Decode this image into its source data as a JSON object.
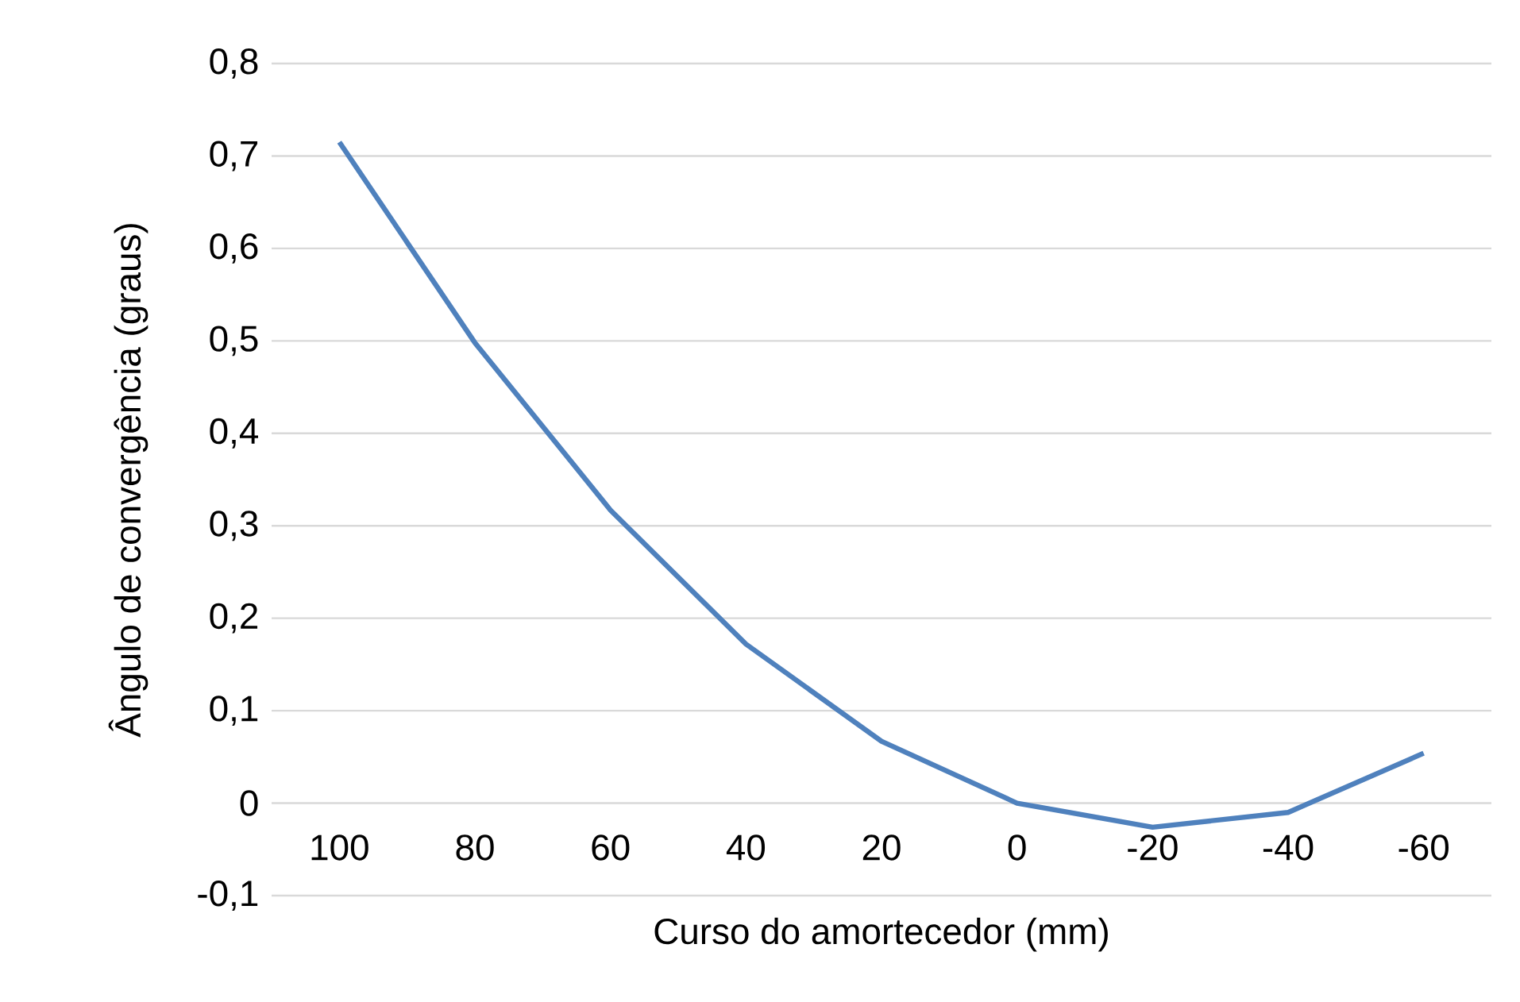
{
  "chart_data": {
    "type": "line",
    "xlabel": "Curso do amortecedor (mm)",
    "ylabel": "Ângulo de convergência (graus)",
    "categories": [
      "100",
      "80",
      "60",
      "40",
      "20",
      "0",
      "-20",
      "-40",
      "-60"
    ],
    "series": [
      {
        "color": "#4f81bd",
        "values": [
          0.715,
          0.498,
          0.317,
          0.172,
          0.067,
          0,
          -0.026,
          -0.01,
          0.054
        ]
      }
    ],
    "ylim": [
      -0.1,
      0.8
    ],
    "yticks": [
      {
        "value": -0.1,
        "label": "-0,1"
      },
      {
        "value": 0,
        "label": "0"
      },
      {
        "value": 0.1,
        "label": "0,1"
      },
      {
        "value": 0.2,
        "label": "0,2"
      },
      {
        "value": 0.3,
        "label": "0,3"
      },
      {
        "value": 0.4,
        "label": "0,4"
      },
      {
        "value": 0.5,
        "label": "0,5"
      },
      {
        "value": 0.6,
        "label": "0,6"
      },
      {
        "value": 0.7,
        "label": "0,7"
      },
      {
        "value": 0.8,
        "label": "0,8"
      }
    ],
    "grid": "y",
    "marker": "none",
    "line_style": "solid"
  }
}
